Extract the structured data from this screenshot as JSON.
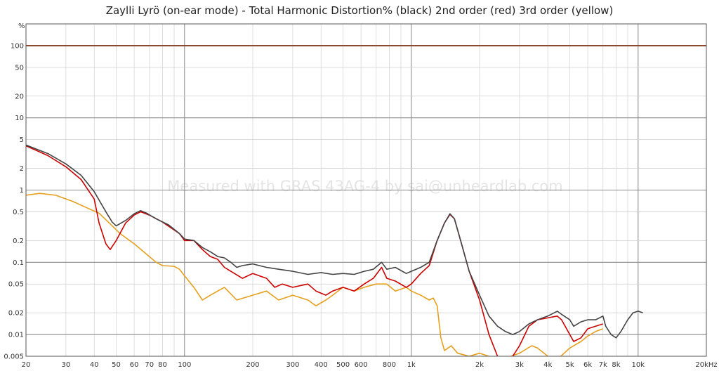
{
  "chart_data": {
    "type": "line",
    "title": "Zaylli Lyrö (on-ear mode) - Total Harmonic Distortion% (black) 2nd order (red) 3rd order (yellow)",
    "watermark": "Measured with GRAS 43AG-4 by sai@unheardlab.com",
    "y_unit": "%",
    "x_scale": "log",
    "y_scale": "log",
    "xlim": [
      20,
      20000
    ],
    "ylim": [
      0.005,
      200
    ],
    "grid": true,
    "x_ticks": [
      {
        "v": 20,
        "label": "20"
      },
      {
        "v": 30,
        "label": "30"
      },
      {
        "v": 40,
        "label": "40"
      },
      {
        "v": 50,
        "label": "50"
      },
      {
        "v": 60,
        "label": "60"
      },
      {
        "v": 70,
        "label": "70"
      },
      {
        "v": 80,
        "label": "80"
      },
      {
        "v": 100,
        "label": "100"
      },
      {
        "v": 200,
        "label": "200"
      },
      {
        "v": 300,
        "label": "300"
      },
      {
        "v": 400,
        "label": "400"
      },
      {
        "v": 500,
        "label": "500"
      },
      {
        "v": 600,
        "label": "600"
      },
      {
        "v": 800,
        "label": "800"
      },
      {
        "v": 1000,
        "label": "1k"
      },
      {
        "v": 2000,
        "label": "2k"
      },
      {
        "v": 3000,
        "label": "3k"
      },
      {
        "v": 4000,
        "label": "4k"
      },
      {
        "v": 5000,
        "label": "5k"
      },
      {
        "v": 6000,
        "label": "6k"
      },
      {
        "v": 7000,
        "label": "7k"
      },
      {
        "v": 8000,
        "label": "8k"
      },
      {
        "v": 10000,
        "label": "10k"
      },
      {
        "v": 20000,
        "label": "20kHz"
      }
    ],
    "y_ticks": [
      {
        "v": 100,
        "label": "100"
      },
      {
        "v": 50,
        "label": "50"
      },
      {
        "v": 20,
        "label": "20"
      },
      {
        "v": 10,
        "label": "10"
      },
      {
        "v": 5,
        "label": "5"
      },
      {
        "v": 2,
        "label": "2"
      },
      {
        "v": 1,
        "label": "1"
      },
      {
        "v": 0.5,
        "label": "0.5"
      },
      {
        "v": 0.2,
        "label": "0.2"
      },
      {
        "v": 0.1,
        "label": "0.1"
      },
      {
        "v": 0.05,
        "label": "0.05"
      },
      {
        "v": 0.02,
        "label": "0.02"
      },
      {
        "v": 0.01,
        "label": "0.01"
      },
      {
        "v": 0.005,
        "label": "0.005"
      }
    ],
    "reference_line": {
      "y": 100,
      "color": "#8b4a2b"
    },
    "series": [
      {
        "color": "#444444",
        "points": [
          [
            20,
            4.2
          ],
          [
            25,
            3.2
          ],
          [
            30,
            2.3
          ],
          [
            35,
            1.6
          ],
          [
            40,
            0.95
          ],
          [
            45,
            0.5
          ],
          [
            48,
            0.36
          ],
          [
            50,
            0.32
          ],
          [
            55,
            0.38
          ],
          [
            60,
            0.47
          ],
          [
            64,
            0.52
          ],
          [
            68,
            0.48
          ],
          [
            75,
            0.4
          ],
          [
            85,
            0.33
          ],
          [
            95,
            0.25
          ],
          [
            100,
            0.21
          ],
          [
            110,
            0.2
          ],
          [
            120,
            0.16
          ],
          [
            130,
            0.14
          ],
          [
            140,
            0.12
          ],
          [
            150,
            0.115
          ],
          [
            160,
            0.1
          ],
          [
            170,
            0.085
          ],
          [
            180,
            0.09
          ],
          [
            200,
            0.095
          ],
          [
            230,
            0.085
          ],
          [
            260,
            0.08
          ],
          [
            300,
            0.075
          ],
          [
            350,
            0.068
          ],
          [
            400,
            0.072
          ],
          [
            450,
            0.068
          ],
          [
            500,
            0.07
          ],
          [
            560,
            0.068
          ],
          [
            620,
            0.075
          ],
          [
            680,
            0.08
          ],
          [
            740,
            0.1
          ],
          [
            780,
            0.08
          ],
          [
            850,
            0.085
          ],
          [
            950,
            0.07
          ],
          [
            1000,
            0.075
          ],
          [
            1100,
            0.085
          ],
          [
            1200,
            0.1
          ],
          [
            1300,
            0.2
          ],
          [
            1400,
            0.35
          ],
          [
            1480,
            0.47
          ],
          [
            1550,
            0.4
          ],
          [
            1650,
            0.2
          ],
          [
            1800,
            0.075
          ],
          [
            2000,
            0.035
          ],
          [
            2200,
            0.018
          ],
          [
            2400,
            0.013
          ],
          [
            2600,
            0.011
          ],
          [
            2800,
            0.01
          ],
          [
            3000,
            0.011
          ],
          [
            3300,
            0.014
          ],
          [
            3600,
            0.016
          ],
          [
            4000,
            0.018
          ],
          [
            4400,
            0.021
          ],
          [
            4600,
            0.019
          ],
          [
            5000,
            0.016
          ],
          [
            5200,
            0.013
          ],
          [
            5600,
            0.015
          ],
          [
            6000,
            0.016
          ],
          [
            6500,
            0.016
          ],
          [
            7000,
            0.018
          ],
          [
            7200,
            0.013
          ],
          [
            7600,
            0.01
          ],
          [
            8000,
            0.009
          ],
          [
            8400,
            0.011
          ],
          [
            9000,
            0.016
          ],
          [
            9500,
            0.02
          ],
          [
            10000,
            0.021
          ],
          [
            10500,
            0.02
          ]
        ]
      },
      {
        "color": "#cc0000",
        "points": [
          [
            20,
            4.1
          ],
          [
            25,
            3.0
          ],
          [
            30,
            2.1
          ],
          [
            35,
            1.4
          ],
          [
            40,
            0.75
          ],
          [
            42,
            0.35
          ],
          [
            45,
            0.18
          ],
          [
            47,
            0.15
          ],
          [
            50,
            0.2
          ],
          [
            55,
            0.35
          ],
          [
            60,
            0.45
          ],
          [
            64,
            0.5
          ],
          [
            70,
            0.45
          ],
          [
            80,
            0.36
          ],
          [
            95,
            0.25
          ],
          [
            100,
            0.2
          ],
          [
            110,
            0.2
          ],
          [
            120,
            0.15
          ],
          [
            130,
            0.12
          ],
          [
            140,
            0.11
          ],
          [
            150,
            0.085
          ],
          [
            160,
            0.075
          ],
          [
            180,
            0.06
          ],
          [
            200,
            0.07
          ],
          [
            230,
            0.06
          ],
          [
            250,
            0.045
          ],
          [
            270,
            0.05
          ],
          [
            300,
            0.045
          ],
          [
            350,
            0.05
          ],
          [
            380,
            0.04
          ],
          [
            420,
            0.035
          ],
          [
            450,
            0.04
          ],
          [
            500,
            0.045
          ],
          [
            560,
            0.04
          ],
          [
            620,
            0.05
          ],
          [
            680,
            0.06
          ],
          [
            740,
            0.085
          ],
          [
            780,
            0.06
          ],
          [
            850,
            0.055
          ],
          [
            950,
            0.045
          ],
          [
            1000,
            0.05
          ],
          [
            1100,
            0.07
          ],
          [
            1200,
            0.09
          ],
          [
            1300,
            0.2
          ],
          [
            1400,
            0.35
          ],
          [
            1480,
            0.46
          ],
          [
            1550,
            0.4
          ],
          [
            1650,
            0.2
          ],
          [
            1800,
            0.075
          ],
          [
            2000,
            0.03
          ],
          [
            2200,
            0.01
          ],
          [
            2400,
            0.005
          ],
          [
            2600,
            0.004
          ],
          [
            2800,
            0.005
          ],
          [
            3000,
            0.007
          ],
          [
            3300,
            0.013
          ],
          [
            3600,
            0.016
          ],
          [
            4000,
            0.017
          ],
          [
            4400,
            0.018
          ],
          [
            4600,
            0.016
          ],
          [
            5000,
            0.01
          ],
          [
            5200,
            0.008
          ],
          [
            5600,
            0.009
          ],
          [
            6000,
            0.012
          ],
          [
            6500,
            0.013
          ],
          [
            7000,
            0.014
          ]
        ]
      },
      {
        "color": "#e6a01e",
        "points": [
          [
            20,
            0.85
          ],
          [
            23,
            0.9
          ],
          [
            27,
            0.85
          ],
          [
            32,
            0.7
          ],
          [
            38,
            0.55
          ],
          [
            42,
            0.48
          ],
          [
            48,
            0.32
          ],
          [
            52,
            0.25
          ],
          [
            60,
            0.18
          ],
          [
            70,
            0.12
          ],
          [
            75,
            0.1
          ],
          [
            80,
            0.09
          ],
          [
            90,
            0.088
          ],
          [
            95,
            0.08
          ],
          [
            100,
            0.065
          ],
          [
            110,
            0.045
          ],
          [
            120,
            0.03
          ],
          [
            130,
            0.035
          ],
          [
            150,
            0.045
          ],
          [
            170,
            0.03
          ],
          [
            200,
            0.035
          ],
          [
            230,
            0.04
          ],
          [
            260,
            0.03
          ],
          [
            300,
            0.035
          ],
          [
            350,
            0.03
          ],
          [
            380,
            0.025
          ],
          [
            420,
            0.03
          ],
          [
            450,
            0.035
          ],
          [
            500,
            0.045
          ],
          [
            560,
            0.04
          ],
          [
            620,
            0.045
          ],
          [
            700,
            0.05
          ],
          [
            780,
            0.05
          ],
          [
            850,
            0.04
          ],
          [
            950,
            0.045
          ],
          [
            1000,
            0.04
          ],
          [
            1100,
            0.035
          ],
          [
            1200,
            0.03
          ],
          [
            1250,
            0.032
          ],
          [
            1300,
            0.025
          ],
          [
            1350,
            0.009
          ],
          [
            1400,
            0.006
          ],
          [
            1500,
            0.007
          ],
          [
            1600,
            0.0055
          ],
          [
            1800,
            0.005
          ],
          [
            2000,
            0.0055
          ],
          [
            2200,
            0.005
          ],
          [
            2500,
            0.0045
          ],
          [
            3000,
            0.0055
          ],
          [
            3400,
            0.007
          ],
          [
            3600,
            0.0065
          ],
          [
            4000,
            0.005
          ],
          [
            4400,
            0.0045
          ],
          [
            5000,
            0.0065
          ],
          [
            5600,
            0.008
          ],
          [
            6000,
            0.0095
          ],
          [
            6500,
            0.011
          ],
          [
            7000,
            0.012
          ]
        ]
      }
    ]
  }
}
